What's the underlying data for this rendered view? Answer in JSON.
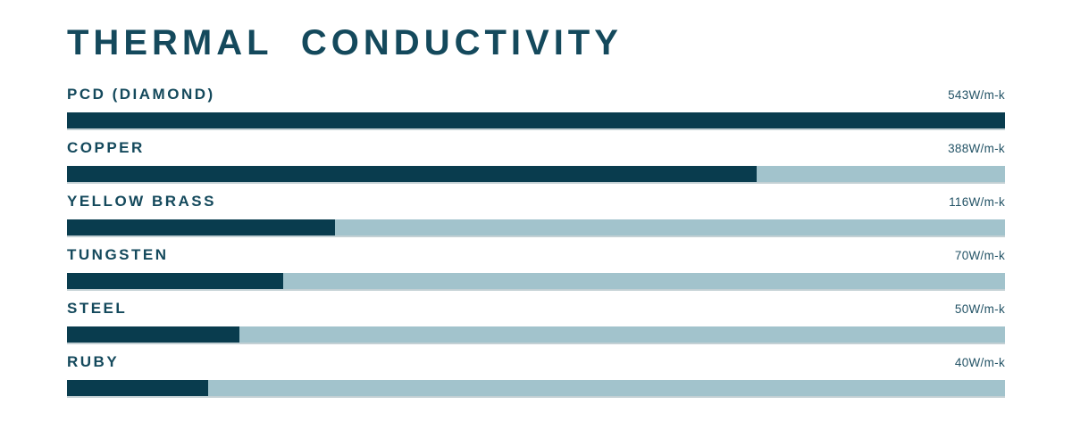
{
  "title": "THERMAL CONDUCTIVITY",
  "colors": {
    "bar_fill": "#093c4e",
    "bar_track": "#a2c3cc",
    "title_text": "#14495c",
    "value_text": "#235366",
    "background": "#ffffff"
  },
  "chart_data": {
    "type": "bar",
    "orientation": "horizontal",
    "title": "THERMAL CONDUCTIVITY",
    "unit": "W/m-k",
    "categories": [
      "PCD (DIAMOND)",
      "COPPER",
      "YELLOW BRASS",
      "TUNGSTEN",
      "STEEL",
      "RUBY"
    ],
    "values": [
      543,
      388,
      116,
      70,
      50,
      40
    ],
    "value_labels": [
      "543W/m-k",
      "388W/m-k",
      "116W/m-k",
      "70W/m-k",
      "50W/m-k",
      "40W/m-k"
    ],
    "bar_fill_pct": [
      100,
      73.5,
      28.6,
      23.0,
      18.4,
      15.0
    ],
    "xlim": [
      0,
      543
    ],
    "grid": false,
    "legend": false,
    "axis_ticks": "none",
    "value_label_position": "right-aligned-above-bar"
  }
}
